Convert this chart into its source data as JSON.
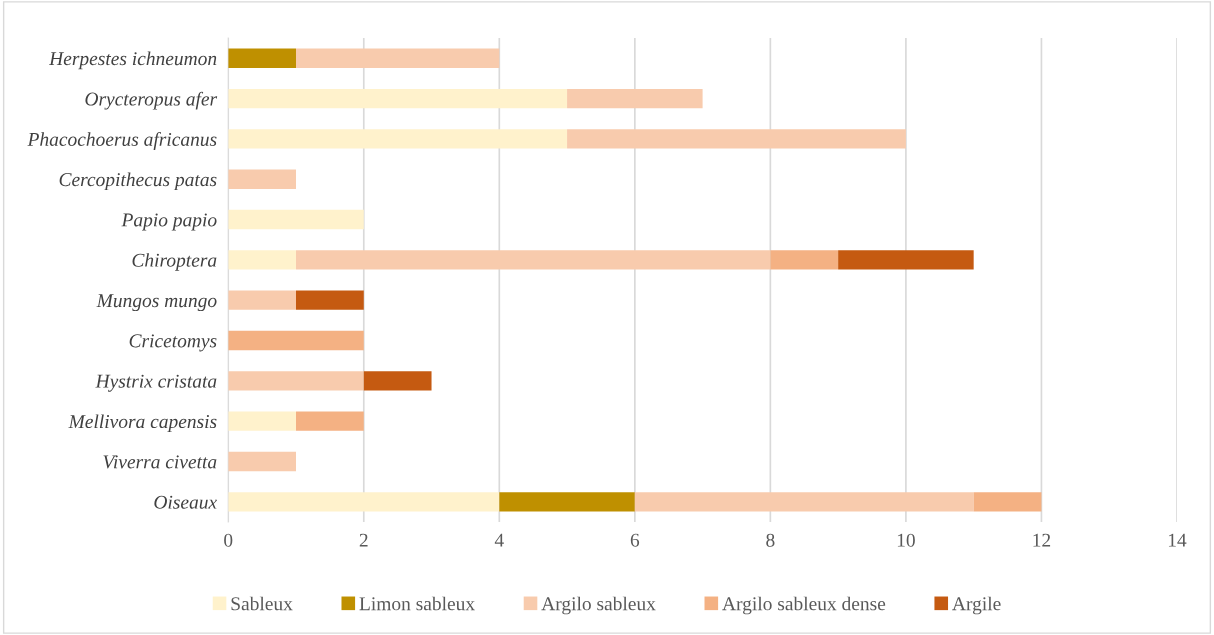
{
  "chart_data": {
    "type": "bar",
    "orientation": "horizontal",
    "stacked": true,
    "categories": [
      "Herpestes ichneumon",
      "Orycteropus afer",
      "Phacochoerus africanus",
      "Cercopithecus patas",
      "Papio papio",
      "Chiroptera",
      "Mungos mungo",
      "Cricetomys",
      "Hystrix cristata",
      "Mellivora capensis",
      "Viverra civetta",
      "Oiseaux"
    ],
    "series": [
      {
        "name": "Sableux",
        "color": "#fff2cc",
        "values": [
          0,
          5,
          5,
          0,
          2,
          1,
          0,
          0,
          0,
          1,
          0,
          4
        ]
      },
      {
        "name": "Limon sableux",
        "color": "#bf9000",
        "values": [
          1,
          0,
          0,
          0,
          0,
          0,
          0,
          0,
          0,
          0,
          0,
          2
        ]
      },
      {
        "name": "Argilo sableux",
        "color": "#f8cbad",
        "values": [
          3,
          2,
          5,
          1,
          0,
          7,
          1,
          0,
          2,
          0,
          1,
          5
        ]
      },
      {
        "name": "Argilo sableux dense",
        "color": "#f4b183",
        "values": [
          0,
          0,
          0,
          0,
          0,
          1,
          0,
          2,
          0,
          1,
          0,
          1
        ]
      },
      {
        "name": "Argile",
        "color": "#c55a11",
        "values": [
          0,
          0,
          0,
          0,
          0,
          2,
          1,
          0,
          1,
          0,
          0,
          0
        ]
      }
    ],
    "xlim": [
      0,
      14
    ],
    "xticks": [
      0,
      2,
      4,
      6,
      8,
      10,
      12,
      14
    ],
    "grid": "x",
    "legend": "bottom"
  }
}
